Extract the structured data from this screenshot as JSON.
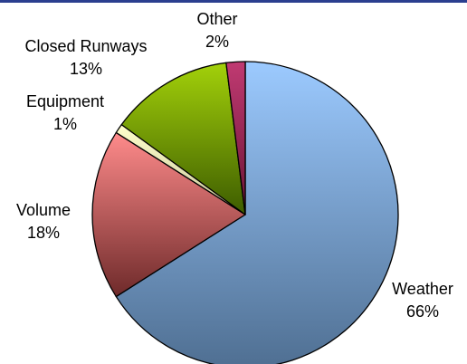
{
  "colors": {
    "top_bar": "#2b3f8f",
    "outline": "#000000"
  },
  "chart_data": {
    "type": "pie",
    "title": "",
    "start_angle_deg": 0,
    "direction": "clockwise",
    "slices": [
      {
        "label": "Weather",
        "pct_label": "66%",
        "value": 66,
        "color_light": "#9ccaff",
        "color_dark": "#4f6f92"
      },
      {
        "label": "Volume",
        "pct_label": "18%",
        "value": 18,
        "color_light": "#ff8b8b",
        "color_dark": "#6e2a2a"
      },
      {
        "label": "Equipment",
        "pct_label": "1%",
        "value": 1,
        "color_light": "#ffffcc",
        "color_dark": "#c8c79a"
      },
      {
        "label": "Closed Runways",
        "pct_label": "13%",
        "value": 13,
        "color_light": "#a3d10a",
        "color_dark": "#3d5c00"
      },
      {
        "label": "Other",
        "pct_label": "2%",
        "value": 2,
        "color_light": "#c03a72",
        "color_dark": "#6a1434"
      }
    ]
  }
}
